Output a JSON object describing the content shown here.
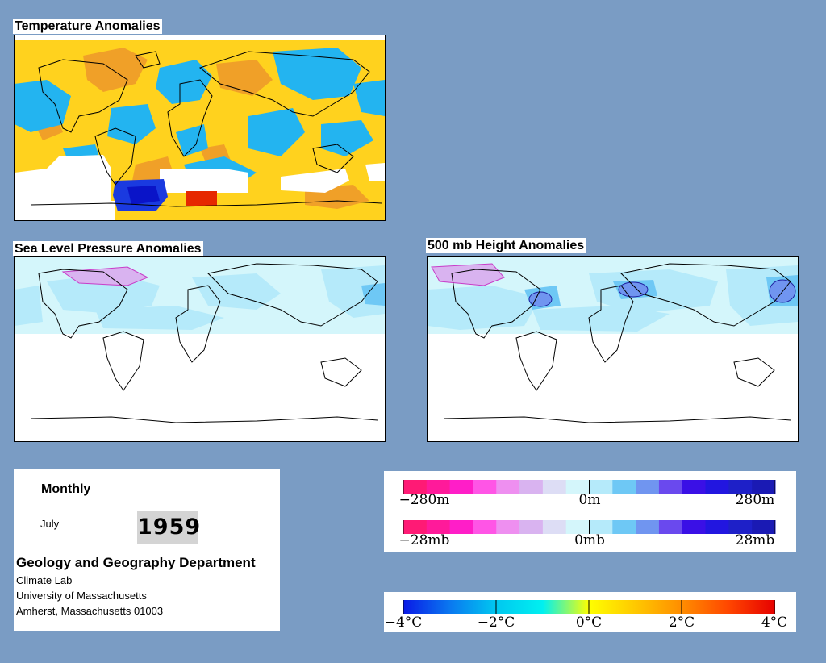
{
  "panels": {
    "temperature": {
      "title": "Temperature Anomalies"
    },
    "slp": {
      "title": "Sea Level Pressure Anomalies"
    },
    "height500": {
      "title": "500 mb Height Anomalies"
    }
  },
  "info": {
    "period": "Monthly",
    "month": "July",
    "year": "1959",
    "department": "Geology and Geography Department",
    "lab": "Climate Lab",
    "university": "University of Massachusetts",
    "address": "Amherst, Massachusetts 01003"
  },
  "legends": {
    "height": {
      "ticks": [
        "−280m",
        "0m",
        "280m"
      ],
      "colors": [
        "#ff1a75",
        "#ff1a9a",
        "#ff1ec8",
        "#ff55e6",
        "#ee8ff0",
        "#d9b3f0",
        "#ddddf5",
        "#d4f6fb",
        "#b5eafa",
        "#6ec8f5",
        "#7095f0",
        "#6a49ee",
        "#3a10e6",
        "#2216e0",
        "#1e20c8",
        "#1a1ab4"
      ]
    },
    "pressure": {
      "ticks": [
        "−28mb",
        "0mb",
        "28mb"
      ],
      "colors": [
        "#ff1a75",
        "#ff1a9a",
        "#ff1ec8",
        "#ff55e6",
        "#ee8ff0",
        "#d9b3f0",
        "#ddddf5",
        "#d4f6fb",
        "#b5eafa",
        "#6ec8f5",
        "#7095f0",
        "#6a49ee",
        "#3a10e6",
        "#2216e0",
        "#1e20c8",
        "#1a1ab4"
      ]
    },
    "temperature": {
      "ticks": [
        "−4°C",
        "−2°C",
        "0°C",
        "2°C",
        "4°C"
      ],
      "gradient": [
        "#0a1ae6",
        "#0a78f0",
        "#00c8f0",
        "#00f0f0",
        "#ffff00",
        "#ffc800",
        "#ff8c00",
        "#ff4600",
        "#e60000"
      ]
    }
  }
}
